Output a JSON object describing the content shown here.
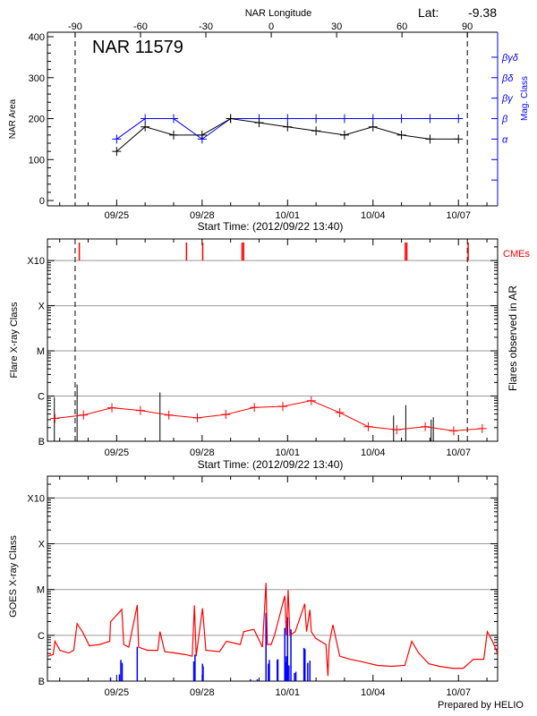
{
  "header": {
    "lat_label": "Lat:",
    "lat_value": "-9.38",
    "footer": "Prepared by HELIO"
  },
  "colors": {
    "nar_area": "#000000",
    "mag_class": "#0000ff",
    "flare_avg": "#ff0000",
    "cme": "#ff0000",
    "ar_flares": "#000000",
    "goes_flux": "#ff0000",
    "goes_flares": "#0000ff",
    "grid": "#999999"
  },
  "chart_data": [
    {
      "type": "line",
      "title": "NAR 11579",
      "top_axis_label": "NAR Longitude",
      "top_axis_ticks": [
        "-90",
        "-60",
        "-30",
        "0",
        "30",
        "60",
        "90"
      ],
      "xlabel": "Start Time: (2012/09/22 13:40)",
      "xlim": [
        "2012-09-22 13:40",
        "2012-10-08 09:00"
      ],
      "x_tick_labels": [
        "09/25",
        "09/28",
        "10/01",
        "10/04",
        "10/07"
      ],
      "ylabel": "NAR Area",
      "ylim": [
        -13,
        411
      ],
      "y_ticks": [
        0,
        100,
        200,
        300,
        400
      ],
      "y2label": "Mag. Class",
      "y2_ticks": [
        {
          "value": 50,
          "label": ""
        },
        {
          "value": 100,
          "label": ""
        },
        {
          "value": 150,
          "label": "α"
        },
        {
          "value": 200,
          "label": "β"
        },
        {
          "value": 250,
          "label": "βγ"
        },
        {
          "value": 300,
          "label": "βδ"
        },
        {
          "value": 350,
          "label": "βγδ"
        }
      ],
      "limb_crossings": [
        "2012-09-23 13:00",
        "2012-10-07 07:30"
      ],
      "x": [
        "2012-09-25 00:00",
        "2012-09-26 00:00",
        "2012-09-27 00:00",
        "2012-09-28 00:00",
        "2012-09-29 00:00",
        "2012-09-30 00:00",
        "2012-10-01 00:00",
        "2012-10-02 00:00",
        "2012-10-03 00:00",
        "2012-10-04 00:00",
        "2012-10-05 00:00",
        "2012-10-06 00:00",
        "2012-10-07 00:00"
      ],
      "series": [
        {
          "name": "NAR Area",
          "values": [
            120,
            180,
            160,
            160,
            200,
            190,
            180,
            170,
            160,
            180,
            160,
            150,
            150
          ]
        },
        {
          "name": "Mag. Class",
          "values": [
            "α",
            "β",
            "β",
            "α",
            "β",
            "β",
            "β",
            "β",
            "β",
            "β",
            "β",
            "β",
            "β"
          ]
        }
      ]
    },
    {
      "type": "line",
      "xlabel": "Start Time: (2012/09/22 13:40)",
      "xlim": [
        "2012-09-22 13:40",
        "2012-10-08 09:00"
      ],
      "x_tick_labels": [
        "09/25",
        "09/28",
        "10/01",
        "10/04",
        "10/07"
      ],
      "ylabel": "Flare X-ray Class",
      "y2label": "Flares observed in AR",
      "yscale": "log",
      "ylim": [
        1e-07,
        0.003
      ],
      "y_ticks": [
        {
          "value": 1e-07,
          "label": "B"
        },
        {
          "value": 1e-06,
          "label": "C"
        },
        {
          "value": 1e-05,
          "label": "M"
        },
        {
          "value": 0.0001,
          "label": "X"
        },
        {
          "value": 0.001,
          "label": "X10"
        }
      ],
      "grid": true,
      "cme_label": "CMEs",
      "limb_crossings": [
        "2012-09-23 13:00",
        "2012-10-07 07:30"
      ],
      "cmes": [
        "2012-09-23 16:30",
        "2012-09-27 10:50",
        "2012-09-28 00:30",
        "2012-09-29 09:40",
        "2012-09-29 11:00",
        "2012-10-05 03:10",
        "2012-10-05 04:30",
        "2012-10-07 08:10"
      ],
      "ar_flares": [
        {
          "time": "2012-09-22 19:30",
          "flux": 9.4e-07
        },
        {
          "time": "2012-09-23 14:40",
          "flux": 1.8e-06
        },
        {
          "time": "2012-09-26 12:30",
          "flux": 1.2e-06
        },
        {
          "time": "2012-10-04 17:20",
          "flux": 3.7e-07
        },
        {
          "time": "2012-10-05 03:36",
          "flux": 6.3e-07
        },
        {
          "time": "2012-10-06 01:00",
          "flux": 3e-07
        },
        {
          "time": "2012-10-06 02:50",
          "flux": 3.4e-07
        }
      ],
      "x": [
        "2012-09-22 20:00",
        "2012-09-23 20:00",
        "2012-09-24 20:00",
        "2012-09-25 20:00",
        "2012-09-26 20:00",
        "2012-09-27 20:00",
        "2012-09-28 20:00",
        "2012-09-29 20:00",
        "2012-09-30 20:00",
        "2012-10-01 20:00",
        "2012-10-02 20:00",
        "2012-10-03 20:00",
        "2012-10-04 20:00",
        "2012-10-05 20:00",
        "2012-10-06 20:00",
        "2012-10-07 20:00"
      ],
      "values": [
        3.2e-07,
        3.8e-07,
        5.5e-07,
        4.8e-07,
        3.8e-07,
        3.3e-07,
        3.9e-07,
        5.6e-07,
        5.9e-07,
        7.9e-07,
        4.3e-07,
        2.1e-07,
        1.8e-07,
        2.1e-07,
        1.7e-07,
        1.9e-07
      ]
    },
    {
      "type": "line",
      "xlim": [
        "2012-09-22 13:40",
        "2012-10-08 09:00"
      ],
      "x_tick_labels": [
        "09/25",
        "09/28",
        "10/01",
        "10/04",
        "10/07"
      ],
      "ylabel": "GOES X-ray Class",
      "yscale": "log",
      "ylim": [
        1e-07,
        0.003
      ],
      "y_ticks": [
        {
          "value": 1e-07,
          "label": "B"
        },
        {
          "value": 1e-06,
          "label": "C"
        },
        {
          "value": 1e-05,
          "label": "M"
        },
        {
          "value": 0.0001,
          "label": "X"
        },
        {
          "value": 0.001,
          "label": "X10"
        }
      ],
      "grid": true,
      "goes_flux": [
        [
          "2012-09-22 13:40",
          3.5e-07
        ],
        [
          "2012-09-22 18:30",
          3.8e-07
        ],
        [
          "2012-09-22 20:00",
          7.4e-07
        ],
        [
          "2012-09-23 00:15",
          4.7e-07
        ],
        [
          "2012-09-23 07:30",
          4.1e-07
        ],
        [
          "2012-09-23 11:50",
          4.7e-07
        ],
        [
          "2012-09-23 14:40",
          1.8e-06
        ],
        [
          "2012-09-23 19:10",
          1.2e-06
        ],
        [
          "2012-09-24 01:00",
          5.9e-07
        ],
        [
          "2012-09-24 09:40",
          6.3e-07
        ],
        [
          "2012-09-24 18:10",
          7.4e-07
        ],
        [
          "2012-09-24 18:50",
          1.96e-06
        ],
        [
          "2012-09-25 04:20",
          3.7e-06
        ],
        [
          "2012-09-25 06:00",
          6.3e-07
        ],
        [
          "2012-09-25 10:10",
          5.5e-07
        ],
        [
          "2012-09-25 17:20",
          4.6e-06
        ],
        [
          "2012-09-25 18:30",
          5.5e-07
        ],
        [
          "2012-09-26 02:00",
          4.7e-07
        ],
        [
          "2012-09-26 10:40",
          4.7e-07
        ],
        [
          "2012-09-26 12:30",
          1.2e-06
        ],
        [
          "2012-09-26 16:30",
          4.4e-07
        ],
        [
          "2012-09-27 01:10",
          4.1e-07
        ],
        [
          "2012-09-27 09:50",
          3.8e-07
        ],
        [
          "2012-09-27 15:40",
          3.5e-07
        ],
        [
          "2012-09-27 17:30",
          4.5e-06
        ],
        [
          "2012-09-27 19:00",
          3.5e-07
        ],
        [
          "2012-09-28 00:20",
          3.9e-06
        ],
        [
          "2012-09-28 03:10",
          4.7e-07
        ],
        [
          "2012-09-28 14:40",
          4.4e-07
        ],
        [
          "2012-09-28 20:30",
          7.4e-07
        ],
        [
          "2012-09-29 08:10",
          6.3e-07
        ],
        [
          "2012-09-29 11:00",
          1.2e-06
        ],
        [
          "2012-09-29 19:40",
          1.35e-06
        ],
        [
          "2012-09-30 02:50",
          5.5e-07
        ],
        [
          "2012-09-30 05:50",
          1.4e-05
        ],
        [
          "2012-09-30 07:00",
          6.3e-07
        ],
        [
          "2012-09-30 10:10",
          6.3e-07
        ],
        [
          "2012-09-30 13:00",
          1e-06
        ],
        [
          "2012-09-30 21:40",
          7.3e-06
        ],
        [
          "2012-09-30 23:00",
          1e-06
        ],
        [
          "2012-10-01 00:30",
          9.8e-06
        ],
        [
          "2012-10-01 02:00",
          1e-06
        ],
        [
          "2012-10-01 06:30",
          1.2e-06
        ],
        [
          "2012-10-01 14:30",
          4.9e-06
        ],
        [
          "2012-10-01 16:00",
          1.2e-06
        ],
        [
          "2012-10-01 18:50",
          3.6e-06
        ],
        [
          "2012-10-01 20:00",
          1.2e-06
        ],
        [
          "2012-10-01 23:40",
          8.6e-07
        ],
        [
          "2012-10-02 08:20",
          6.3e-07
        ],
        [
          "2012-10-02 10:00",
          1.3e-07
        ],
        [
          "2012-10-02 11:00",
          6.3e-07
        ],
        [
          "2012-10-02 14:10",
          1.7e-06
        ],
        [
          "2012-10-02 20:00",
          3.5e-07
        ],
        [
          "2012-10-03 04:40",
          3e-07
        ],
        [
          "2012-10-03 16:10",
          2.6e-07
        ],
        [
          "2012-10-04 03:50",
          2.2e-07
        ],
        [
          "2012-10-04 15:20",
          2.1e-07
        ],
        [
          "2012-10-05 02:50",
          2.2e-07
        ],
        [
          "2012-10-05 08:40",
          7.4e-07
        ],
        [
          "2012-10-05 14:30",
          4.1e-07
        ],
        [
          "2012-10-05 23:00",
          2.4e-07
        ],
        [
          "2012-10-06 07:50",
          2.1e-07
        ],
        [
          "2012-10-06 19:20",
          1.9e-07
        ],
        [
          "2012-10-07 04:00",
          1.9e-07
        ],
        [
          "2012-10-07 12:40",
          3e-07
        ],
        [
          "2012-10-07 21:20",
          3e-07
        ],
        [
          "2012-10-08 00:20",
          1.2e-06
        ],
        [
          "2012-10-08 04:40",
          7.4e-07
        ],
        [
          "2012-10-08 08:50",
          4.1e-07
        ]
      ],
      "goes_flares": [
        [
          "2012-09-24 18:50",
          1.2e-07
        ],
        [
          "2012-09-25 02:20",
          1.4e-07
        ],
        [
          "2012-09-25 03:30",
          2.9e-07
        ],
        [
          "2012-09-25 04:40",
          2.5e-07
        ],
        [
          "2012-09-25 17:20",
          5.6e-07
        ],
        [
          "2012-09-27 17:00",
          2.7e-07
        ],
        [
          "2012-09-27 18:00",
          3.8e-07
        ],
        [
          "2012-09-28 00:20",
          2.4e-07
        ],
        [
          "2012-09-28 00:50",
          2.1e-07
        ],
        [
          "2012-09-29 16:50",
          1.1e-07
        ],
        [
          "2012-09-29 22:30",
          1.1e-07
        ],
        [
          "2012-09-30 05:50",
          3.1e-06
        ],
        [
          "2012-09-30 07:50",
          2.4e-07
        ],
        [
          "2012-09-30 08:40",
          2.9e-07
        ],
        [
          "2012-09-30 15:20",
          2.9e-07
        ],
        [
          "2012-09-30 15:50",
          3e-07
        ],
        [
          "2012-09-30 21:40",
          1.45e-06
        ],
        [
          "2012-09-30 22:20",
          2.6e-07
        ],
        [
          "2012-09-30 23:00",
          3.5e-07
        ],
        [
          "2012-10-01 00:00",
          2.5e-06
        ],
        [
          "2012-10-01 01:10",
          2.2e-07
        ],
        [
          "2012-10-01 02:50",
          1.35e-06
        ],
        [
          "2012-10-01 05:50",
          1.5e-07
        ],
        [
          "2012-10-01 07:00",
          1.6e-07
        ],
        [
          "2012-10-01 13:50",
          5.3e-07
        ],
        [
          "2012-10-01 14:40",
          5e-07
        ],
        [
          "2012-10-01 17:00",
          2.5e-07
        ],
        [
          "2012-10-01 18:50",
          2.8e-07
        ]
      ]
    }
  ]
}
